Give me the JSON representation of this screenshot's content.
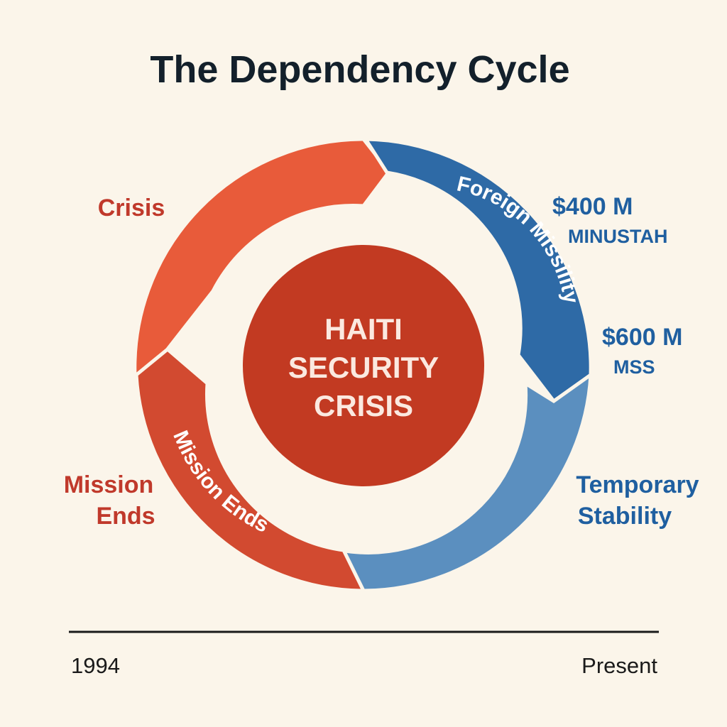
{
  "title": "The Dependency Cycle",
  "center": {
    "line1": "HAITI",
    "line2": "SECURITY",
    "line3": "CRISIS"
  },
  "arcs": {
    "top_right": "Foreign Missility",
    "bottom_left": "Mission Ends"
  },
  "labels": {
    "crisis": "Crisis",
    "mission_ends_line1": "Mission",
    "mission_ends_line2": "Ends",
    "temporary_line1": "Temporary",
    "temporary_line2": "Stability",
    "amount1": "$400 M",
    "amount1_sub": "MINUSTAH",
    "amount2": "$600 M",
    "amount2_sub": "MSS"
  },
  "timeline": {
    "start": "1994",
    "end": "Present"
  },
  "colors": {
    "background": "#fbf5ea",
    "orange": "#e85b3a",
    "red": "#d24a30",
    "dark_blue": "#2e6aa6",
    "light_blue": "#5b8fbf",
    "center": "#c23a22"
  }
}
